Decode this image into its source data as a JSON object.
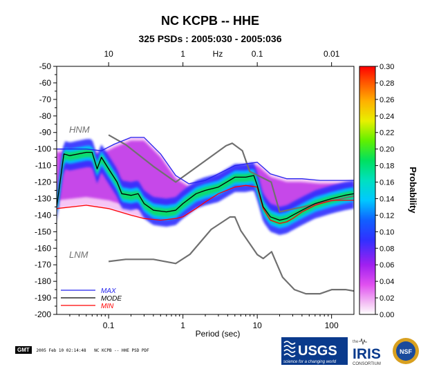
{
  "chart_data": {
    "type": "line",
    "title": "NC KCPB -- HHE",
    "subtitle": "325 PSDs : 2005:030 - 2005:036",
    "xlabel": "Period (sec)",
    "ylabel": "",
    "x_scale": "log",
    "xlim": [
      0.02,
      200
    ],
    "ylim": [
      -200,
      -50
    ],
    "x_ticks": [
      0.1,
      1,
      10,
      100
    ],
    "x_tick_labels": [
      "0.1",
      "1",
      "10",
      "100"
    ],
    "y_ticks": [
      -50,
      -60,
      -70,
      -80,
      -90,
      -100,
      -110,
      -120,
      -130,
      -140,
      -150,
      -160,
      -170,
      -180,
      -190,
      -200
    ],
    "y_tick_labels": [
      "-50",
      "-60",
      "-70",
      "-80",
      "-90",
      "-100",
      "-110",
      "-120",
      "-130",
      "-140",
      "-150",
      "-160",
      "-170",
      "-180",
      "-190",
      "-200"
    ],
    "top_axis": {
      "label": "Hz",
      "ticks": [
        10,
        1,
        0.1,
        0.01
      ],
      "tick_labels": [
        "10",
        "1",
        "0.1",
        "0.01"
      ]
    },
    "colorbar": {
      "label": "Probability",
      "range": [
        0,
        0.3
      ],
      "ticks": [
        "0.00",
        "0.02",
        "0.04",
        "0.06",
        "0.08",
        "0.10",
        "0.12",
        "0.14",
        "0.16",
        "0.18",
        "0.20",
        "0.22",
        "0.24",
        "0.26",
        "0.28",
        "0.30"
      ]
    },
    "annotations": [
      {
        "text": "HNM",
        "x": 0.04,
        "y": -92
      },
      {
        "text": "LNM",
        "x": 0.04,
        "y": -165
      }
    ],
    "series": [
      {
        "name": "MAX",
        "color": "#2222ee",
        "x": [
          0.02,
          0.05,
          0.08,
          0.12,
          0.2,
          0.3,
          0.5,
          0.8,
          1.2,
          2,
          3,
          5,
          7,
          10,
          15,
          25,
          40,
          70,
          100,
          200
        ],
        "y": [
          -100,
          -100,
          -101,
          -97,
          -93,
          -93,
          -103,
          -116,
          -121,
          -119,
          -115,
          -110,
          -109,
          -108,
          -115,
          -118,
          -118,
          -119,
          -119,
          -119
        ]
      },
      {
        "name": "MODE",
        "color": "#000000",
        "x": [
          0.02,
          0.025,
          0.03,
          0.05,
          0.06,
          0.07,
          0.08,
          0.1,
          0.13,
          0.15,
          0.2,
          0.25,
          0.3,
          0.4,
          0.6,
          0.8,
          1,
          1.5,
          2,
          3,
          5,
          7,
          9,
          10,
          12,
          15,
          20,
          25,
          30,
          40,
          60,
          100,
          150,
          200
        ],
        "y": [
          -135,
          -103,
          -104,
          -102,
          -102,
          -112,
          -105,
          -112,
          -120,
          -127,
          -128,
          -127,
          -133,
          -137,
          -138,
          -137,
          -133,
          -127,
          -125,
          -123,
          -117,
          -117,
          -116,
          -122,
          -135,
          -141,
          -143,
          -142,
          -140,
          -137,
          -133,
          -130,
          -128,
          -127
        ]
      },
      {
        "name": "MIN",
        "color": "#ff0000",
        "x": [
          0.02,
          0.05,
          0.1,
          0.2,
          0.3,
          0.5,
          0.8,
          1,
          1.5,
          2,
          3,
          5,
          7,
          10,
          12,
          15,
          20,
          25,
          30,
          40,
          60,
          100,
          200
        ],
        "y": [
          -136,
          -134,
          -136,
          -140,
          -142,
          -143,
          -142,
          -141,
          -136,
          -132,
          -127,
          -123,
          -122,
          -123,
          -136,
          -143,
          -145,
          -144,
          -142,
          -138,
          -134,
          -131,
          -131
        ]
      },
      {
        "name": "HNM",
        "color": "#707070",
        "x": [
          0.1,
          0.17,
          0.4,
          0.8,
          3.8,
          4.6,
          6.3,
          7.9,
          15.4,
          20,
          354.8
        ],
        "y": [
          -91.5,
          -97.4,
          -110.5,
          -120,
          -98,
          -96.5,
          -101,
          -113.5,
          -120,
          -138,
          -126
        ]
      },
      {
        "name": "LNM",
        "color": "#707070",
        "x": [
          0.1,
          0.17,
          0.4,
          0.8,
          1.24,
          2.4,
          4.3,
          5,
          6,
          10,
          12,
          15.6,
          21.9,
          31.6,
          45,
          70,
          101,
          154,
          328,
          600
        ],
        "y": [
          -168,
          -166.7,
          -166.7,
          -169.2,
          -163.7,
          -148.6,
          -141.1,
          -141.1,
          -149.3,
          -163.8,
          -166.2,
          -162.1,
          -177.5,
          -185,
          -187.5,
          -187.5,
          -185,
          -185,
          -187.5,
          -184.4
        ]
      }
    ]
  },
  "legend": {
    "items": [
      {
        "label": "MAX",
        "color": "#2222ee"
      },
      {
        "label": "MODE",
        "color": "#000000"
      },
      {
        "label": "MIN",
        "color": "#ff0000"
      }
    ]
  },
  "footer": {
    "badge": "GMT",
    "timestamp": "2005 Feb 10 02:14:48",
    "caption": "NC KCPB -- HHE PSD PDF"
  },
  "logos": {
    "usgs": "USGS",
    "usgs_tagline": "science for a changing world",
    "iris_prefix": "the",
    "iris": "IRIS",
    "iris_sub": "CONSORTIUM",
    "nsf": "NSF"
  }
}
